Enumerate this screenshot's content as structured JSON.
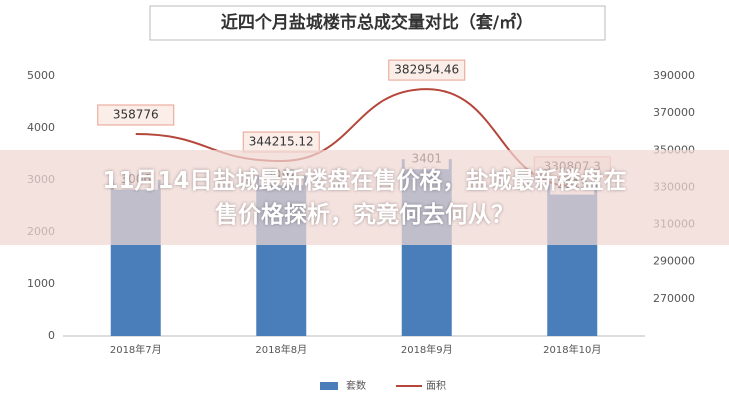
{
  "chart_data": {
    "type": "combo",
    "title": "近四个月盐城楼市总成交量对比（套/㎡）",
    "categories": [
      "2018年7月",
      "2018年8月",
      "2018年9月",
      "2018年10月"
    ],
    "series": [
      {
        "name": "套数",
        "type": "bar",
        "color": "#4a7ebb",
        "values": [
          3006,
          3092,
          3401,
          2913
        ]
      },
      {
        "name": "面积",
        "type": "line",
        "axis": "y2",
        "color": "#b5473a",
        "values": [
          358776,
          344215.12,
          382954.46,
          330807.3
        ]
      }
    ],
    "ylim": [
      0,
      5000
    ],
    "yticks": [
      0,
      1000,
      2000,
      3000,
      4000,
      5000
    ],
    "y2lim": [
      250000,
      390000
    ],
    "y2ticks": [
      270000,
      290000,
      310000,
      330000,
      350000,
      370000,
      390000
    ],
    "grid": false
  },
  "banner": {
    "title": "11月14日盐城最新楼盘在售价格，盐城最新楼盘在售价格探析，究竟何去何从？"
  }
}
